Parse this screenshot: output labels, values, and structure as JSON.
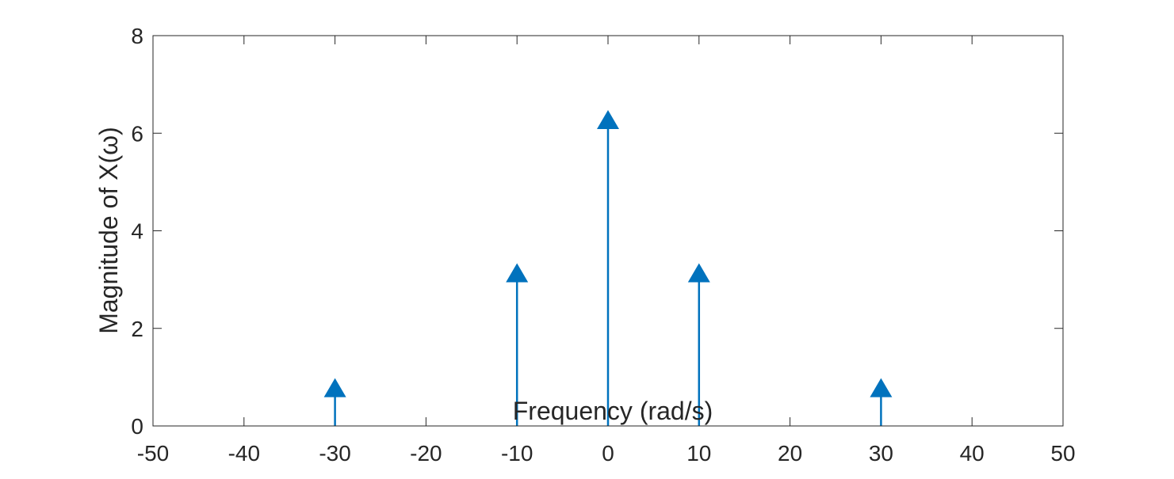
{
  "chart_data": {
    "type": "stem",
    "marker": "triangle-up",
    "xlabel": "Frequency (rad/s)",
    "ylabel": "Magnitude of X(ω)",
    "xlim": [
      -50,
      50
    ],
    "ylim": [
      0,
      8
    ],
    "xticks": [
      -50,
      -40,
      -30,
      -20,
      -10,
      0,
      10,
      20,
      30,
      40,
      50
    ],
    "yticks": [
      0,
      2,
      4,
      6,
      8
    ],
    "x": [
      -30,
      -10,
      0,
      10,
      30
    ],
    "values": [
      0.785,
      3.14,
      6.28,
      3.14,
      0.785
    ],
    "grid": false,
    "box": true,
    "color": "#0072BD"
  }
}
